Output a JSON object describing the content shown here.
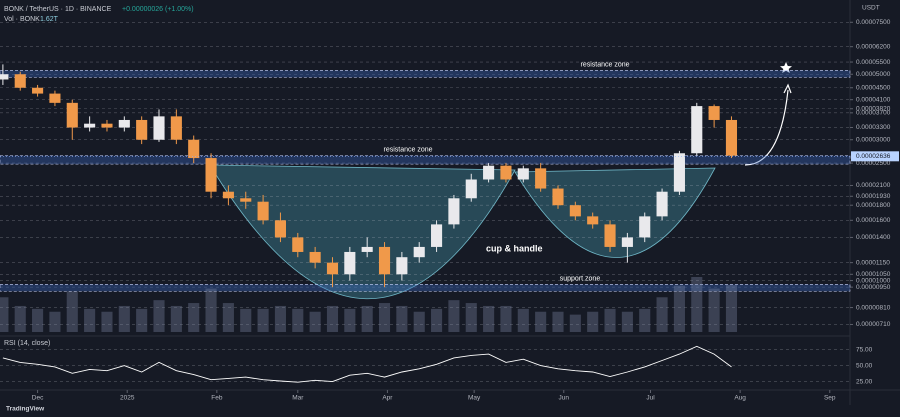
{
  "chart_data": {
    "type": "candlestick",
    "title": "BONK / TetherUS · 1D · BINANCE",
    "change": "+0.00000026 (+1.00%)",
    "volume_label": "Vol · BONK",
    "volume_last": "1.62T",
    "currency": "USDT",
    "brand": "TradingView",
    "log_scale": true,
    "grid": true,
    "up_color": "#e9e9ec",
    "down_color": "#f0994a",
    "x": [
      0,
      6,
      12,
      18,
      24,
      30,
      36,
      42,
      48,
      54,
      60,
      66,
      72,
      78,
      84,
      90,
      96,
      102,
      108,
      114,
      120,
      126,
      132,
      138,
      144,
      150,
      156,
      162,
      168,
      174,
      180,
      186,
      192,
      198,
      204,
      210,
      216,
      222,
      228,
      234,
      240,
      246,
      252
    ],
    "open": [
      4.8e-05,
      5e-05,
      4.5e-05,
      4.3e-05,
      4e-05,
      3.3e-05,
      3.4e-05,
      3.3e-05,
      3.5e-05,
      3e-05,
      3.6e-05,
      3e-05,
      2.6e-05,
      2e-05,
      1.9e-05,
      1.85e-05,
      1.6e-05,
      1.4e-05,
      1.25e-05,
      1.15e-05,
      1.05e-05,
      1.25e-05,
      1.3e-05,
      1.05e-05,
      1.2e-05,
      1.3e-05,
      1.55e-05,
      1.9e-05,
      2.2e-05,
      2.45e-05,
      2.2e-05,
      2.4e-05,
      2.05e-05,
      1.8e-05,
      1.65e-05,
      1.55e-05,
      1.3e-05,
      1.4e-05,
      1.65e-05,
      2e-05,
      2.7e-05,
      3.9e-05,
      3.5e-05
    ],
    "high": [
      5.4e-05,
      5.1e-05,
      4.6e-05,
      4.4e-05,
      4.1e-05,
      3.6e-05,
      3.5e-05,
      3.6e-05,
      3.6e-05,
      3.8e-05,
      3.8e-05,
      3.1e-05,
      2.7e-05,
      2.1e-05,
      2e-05,
      1.95e-05,
      1.7e-05,
      1.45e-05,
      1.3e-05,
      1.2e-05,
      1.3e-05,
      1.4e-05,
      1.35e-05,
      1.25e-05,
      1.35e-05,
      1.6e-05,
      1.95e-05,
      2.3e-05,
      2.5e-05,
      2.5e-05,
      2.45e-05,
      2.5e-05,
      2.1e-05,
      1.85e-05,
      1.7e-05,
      1.6e-05,
      1.45e-05,
      1.7e-05,
      2.05e-05,
      2.75e-05,
      4e-05,
      3.95e-05,
      3.6e-05
    ],
    "low": [
      4.6e-05,
      4.4e-05,
      4.2e-05,
      3.9e-05,
      3e-05,
      3.2e-05,
      3.2e-05,
      3.2e-05,
      2.9e-05,
      2.95e-05,
      2.9e-05,
      2.5e-05,
      1.9e-05,
      1.8e-05,
      1.75e-05,
      1.55e-05,
      1.35e-05,
      1.2e-05,
      1.1e-05,
      9.5e-06,
      1e-05,
      1.2e-05,
      9.5e-06,
      1e-05,
      1.15e-05,
      1.25e-05,
      1.5e-05,
      1.85e-05,
      2.15e-05,
      2.15e-05,
      2.15e-05,
      2e-05,
      1.75e-05,
      1.6e-05,
      1.5e-05,
      1.25e-05,
      1.15e-05,
      1.35e-05,
      1.6e-05,
      1.95e-05,
      2.65e-05,
      3.3e-05,
      2.6e-05
    ],
    "close": [
      5e-05,
      4.5e-05,
      4.3e-05,
      4e-05,
      3.3e-05,
      3.4e-05,
      3.3e-05,
      3.5e-05,
      3e-05,
      3.6e-05,
      3e-05,
      2.6e-05,
      2e-05,
      1.9e-05,
      1.85e-05,
      1.6e-05,
      1.4e-05,
      1.25e-05,
      1.15e-05,
      1.05e-05,
      1.25e-05,
      1.3e-05,
      1.05e-05,
      1.2e-05,
      1.3e-05,
      1.55e-05,
      1.9e-05,
      2.2e-05,
      2.45e-05,
      2.2e-05,
      2.4e-05,
      2.05e-05,
      1.8e-05,
      1.65e-05,
      1.55e-05,
      1.3e-05,
      1.4e-05,
      1.65e-05,
      2e-05,
      2.7e-05,
      3.9e-05,
      3.5e-05,
      2.65e-05
    ],
    "volume": [
      1.2,
      0.9,
      0.8,
      0.7,
      1.4,
      0.8,
      0.7,
      0.9,
      0.8,
      1.1,
      0.9,
      1.0,
      1.5,
      1.0,
      0.8,
      0.8,
      0.9,
      0.8,
      0.7,
      0.9,
      0.8,
      0.9,
      1.0,
      0.9,
      0.7,
      0.8,
      1.1,
      1.0,
      0.9,
      0.9,
      0.8,
      0.7,
      0.7,
      0.6,
      0.7,
      0.8,
      0.7,
      0.8,
      1.2,
      1.6,
      1.9,
      1.5,
      1.62
    ],
    "xlim": [
      -1,
      293
    ],
    "xticks": [
      {
        "value": 12,
        "label": "Dec"
      },
      {
        "value": 43,
        "label": "2025"
      },
      {
        "value": 74,
        "label": "Feb"
      },
      {
        "value": 102,
        "label": "Mar"
      },
      {
        "value": 133,
        "label": "Apr"
      },
      {
        "value": 163,
        "label": "May"
      },
      {
        "value": 194,
        "label": "Jun"
      },
      {
        "value": 224,
        "label": "Jul"
      },
      {
        "value": 255,
        "label": "Aug"
      },
      {
        "value": 286,
        "label": "Sep"
      }
    ],
    "ylim": [
      6.8e-06,
      8e-05
    ],
    "yticks": [
      {
        "value": 7.5e-05,
        "label": "0.00007500"
      },
      {
        "value": 6.2e-05,
        "label": "0.00006200"
      },
      {
        "value": 5.5e-05,
        "label": "0.00005500"
      },
      {
        "value": 5e-05,
        "label": "0.00005000"
      },
      {
        "value": 4.5e-05,
        "label": "0.00004500"
      },
      {
        "value": 4.1e-05,
        "label": "0.00004100"
      },
      {
        "value": 3.82e-05,
        "label": "0.00003820"
      },
      {
        "value": 3.7e-05,
        "label": "0.00003700"
      },
      {
        "value": 3.3e-05,
        "label": "0.00003300"
      },
      {
        "value": 3e-05,
        "label": "0.00003000"
      },
      {
        "value": 2.5e-05,
        "label": "0.00002500"
      },
      {
        "value": 2.1e-05,
        "label": "0.00002100"
      },
      {
        "value": 1.93e-05,
        "label": "0.00001930"
      },
      {
        "value": 1.8e-05,
        "label": "0.00001800"
      },
      {
        "value": 1.6e-05,
        "label": "0.00001600"
      },
      {
        "value": 1.4e-05,
        "label": "0.00001400"
      },
      {
        "value": 1.15e-05,
        "label": "0.00001150"
      },
      {
        "value": 1.05e-05,
        "label": "0.00001050"
      },
      {
        "value": 1e-05,
        "label": "0.00001000"
      },
      {
        "value": 9.5e-06,
        "label": "0.00000950"
      },
      {
        "value": 8.1e-06,
        "label": "0.00000810"
      },
      {
        "value": 7.1e-06,
        "label": "0.00000710"
      }
    ],
    "last_price": 2.636e-05,
    "zones": [
      {
        "label": "resistance zone",
        "range": [
          4.88e-05,
          5.15e-05
        ]
      },
      {
        "label": "resistance zone",
        "range": [
          2.48e-05,
          2.65e-05
        ]
      },
      {
        "label": "support zone",
        "range": [
          9.2e-06,
          9.7e-06
        ]
      }
    ],
    "pattern_label": "cup & handle",
    "rsi": {
      "title": "RSI (14, close)",
      "color": "#ffffff",
      "values": [
        62,
        55,
        52,
        48,
        38,
        44,
        42,
        50,
        40,
        55,
        42,
        36,
        28,
        30,
        32,
        28,
        26,
        24,
        27,
        25,
        35,
        38,
        32,
        40,
        45,
        52,
        62,
        66,
        68,
        55,
        60,
        50,
        45,
        42,
        40,
        33,
        40,
        48,
        58,
        68,
        80,
        68,
        48
      ],
      "ylim": [
        15,
        90
      ],
      "yticks": [
        {
          "value": 25,
          "label": "25.00"
        },
        {
          "value": 50,
          "label": "50.00"
        },
        {
          "value": 75,
          "label": "75.00"
        }
      ]
    }
  }
}
